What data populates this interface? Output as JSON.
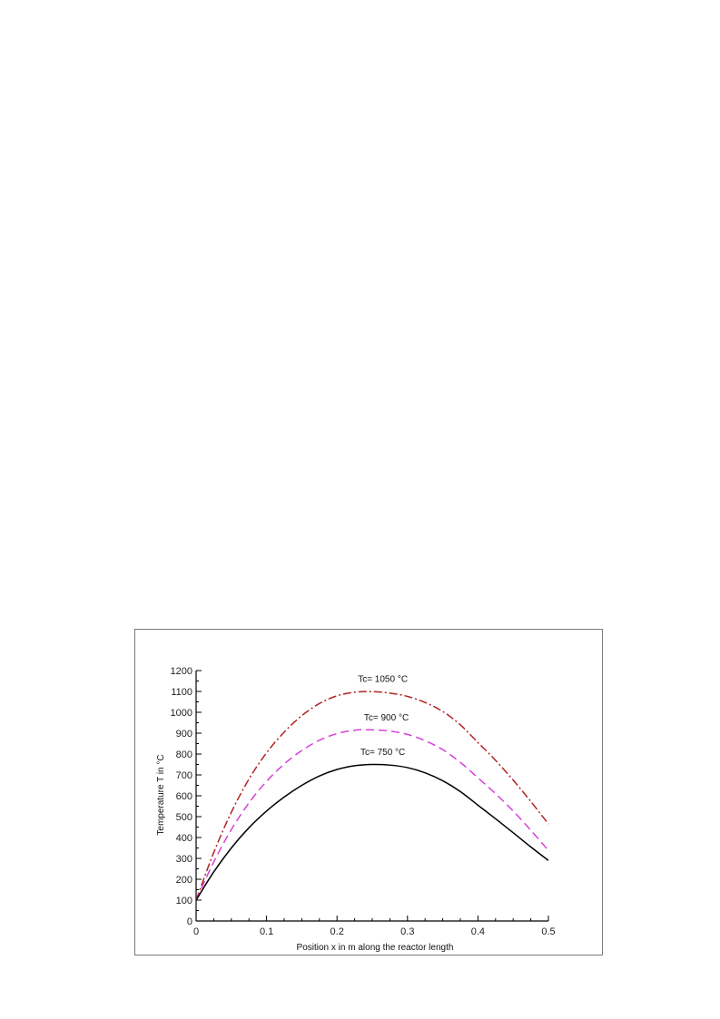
{
  "chart_data": {
    "type": "line",
    "xlabel": "Position x in m along the reactor length",
    "ylabel": "Temperature T in °C",
    "xlim": [
      0,
      0.5
    ],
    "ylim": [
      0,
      1200
    ],
    "x_ticks": [
      "0",
      "0.1",
      "0.2",
      "0.3",
      "0.4",
      "0.5"
    ],
    "y_ticks": [
      "0",
      "100",
      "200",
      "300",
      "400",
      "500",
      "600",
      "700",
      "800",
      "900",
      "1000",
      "1100",
      "1200"
    ],
    "grid": false,
    "x": [
      0,
      0.025,
      0.05,
      0.075,
      0.1,
      0.125,
      0.15,
      0.175,
      0.2,
      0.225,
      0.25,
      0.275,
      0.3,
      0.325,
      0.35,
      0.375,
      0.4,
      0.425,
      0.45,
      0.475,
      0.5
    ],
    "series": [
      {
        "color": "#b22222",
        "style": "dash-dot",
        "values": [
          100,
          328,
          521,
          680,
          806,
          905,
          984,
          1042,
          1079,
          1096,
          1099,
          1092,
          1076,
          1047,
          1004,
          940,
          855,
          770,
          675,
          573,
          465
        ]
      },
      {
        "color": "#d63fd6",
        "style": "dashed",
        "values": [
          100,
          283,
          438,
          566,
          669,
          752,
          817,
          866,
          898,
          914,
          916,
          910,
          894,
          864,
          821,
          760,
          686,
          610,
          527,
          435,
          338
        ]
      },
      {
        "color": "#000000",
        "style": "solid",
        "values": [
          100,
          235,
          350,
          447,
          527,
          594,
          650,
          695,
          726,
          744,
          750,
          747,
          735,
          710,
          672,
          620,
          555,
          490,
          423,
          355,
          290
        ]
      }
    ],
    "annotations": [
      {
        "text": "Tc= 1050 °C",
        "x": 0.265,
        "y": 1145
      },
      {
        "text": "Tc= 900 °C",
        "x": 0.27,
        "y": 960
      },
      {
        "text": "Tc= 750 °C",
        "x": 0.265,
        "y": 795
      }
    ]
  }
}
